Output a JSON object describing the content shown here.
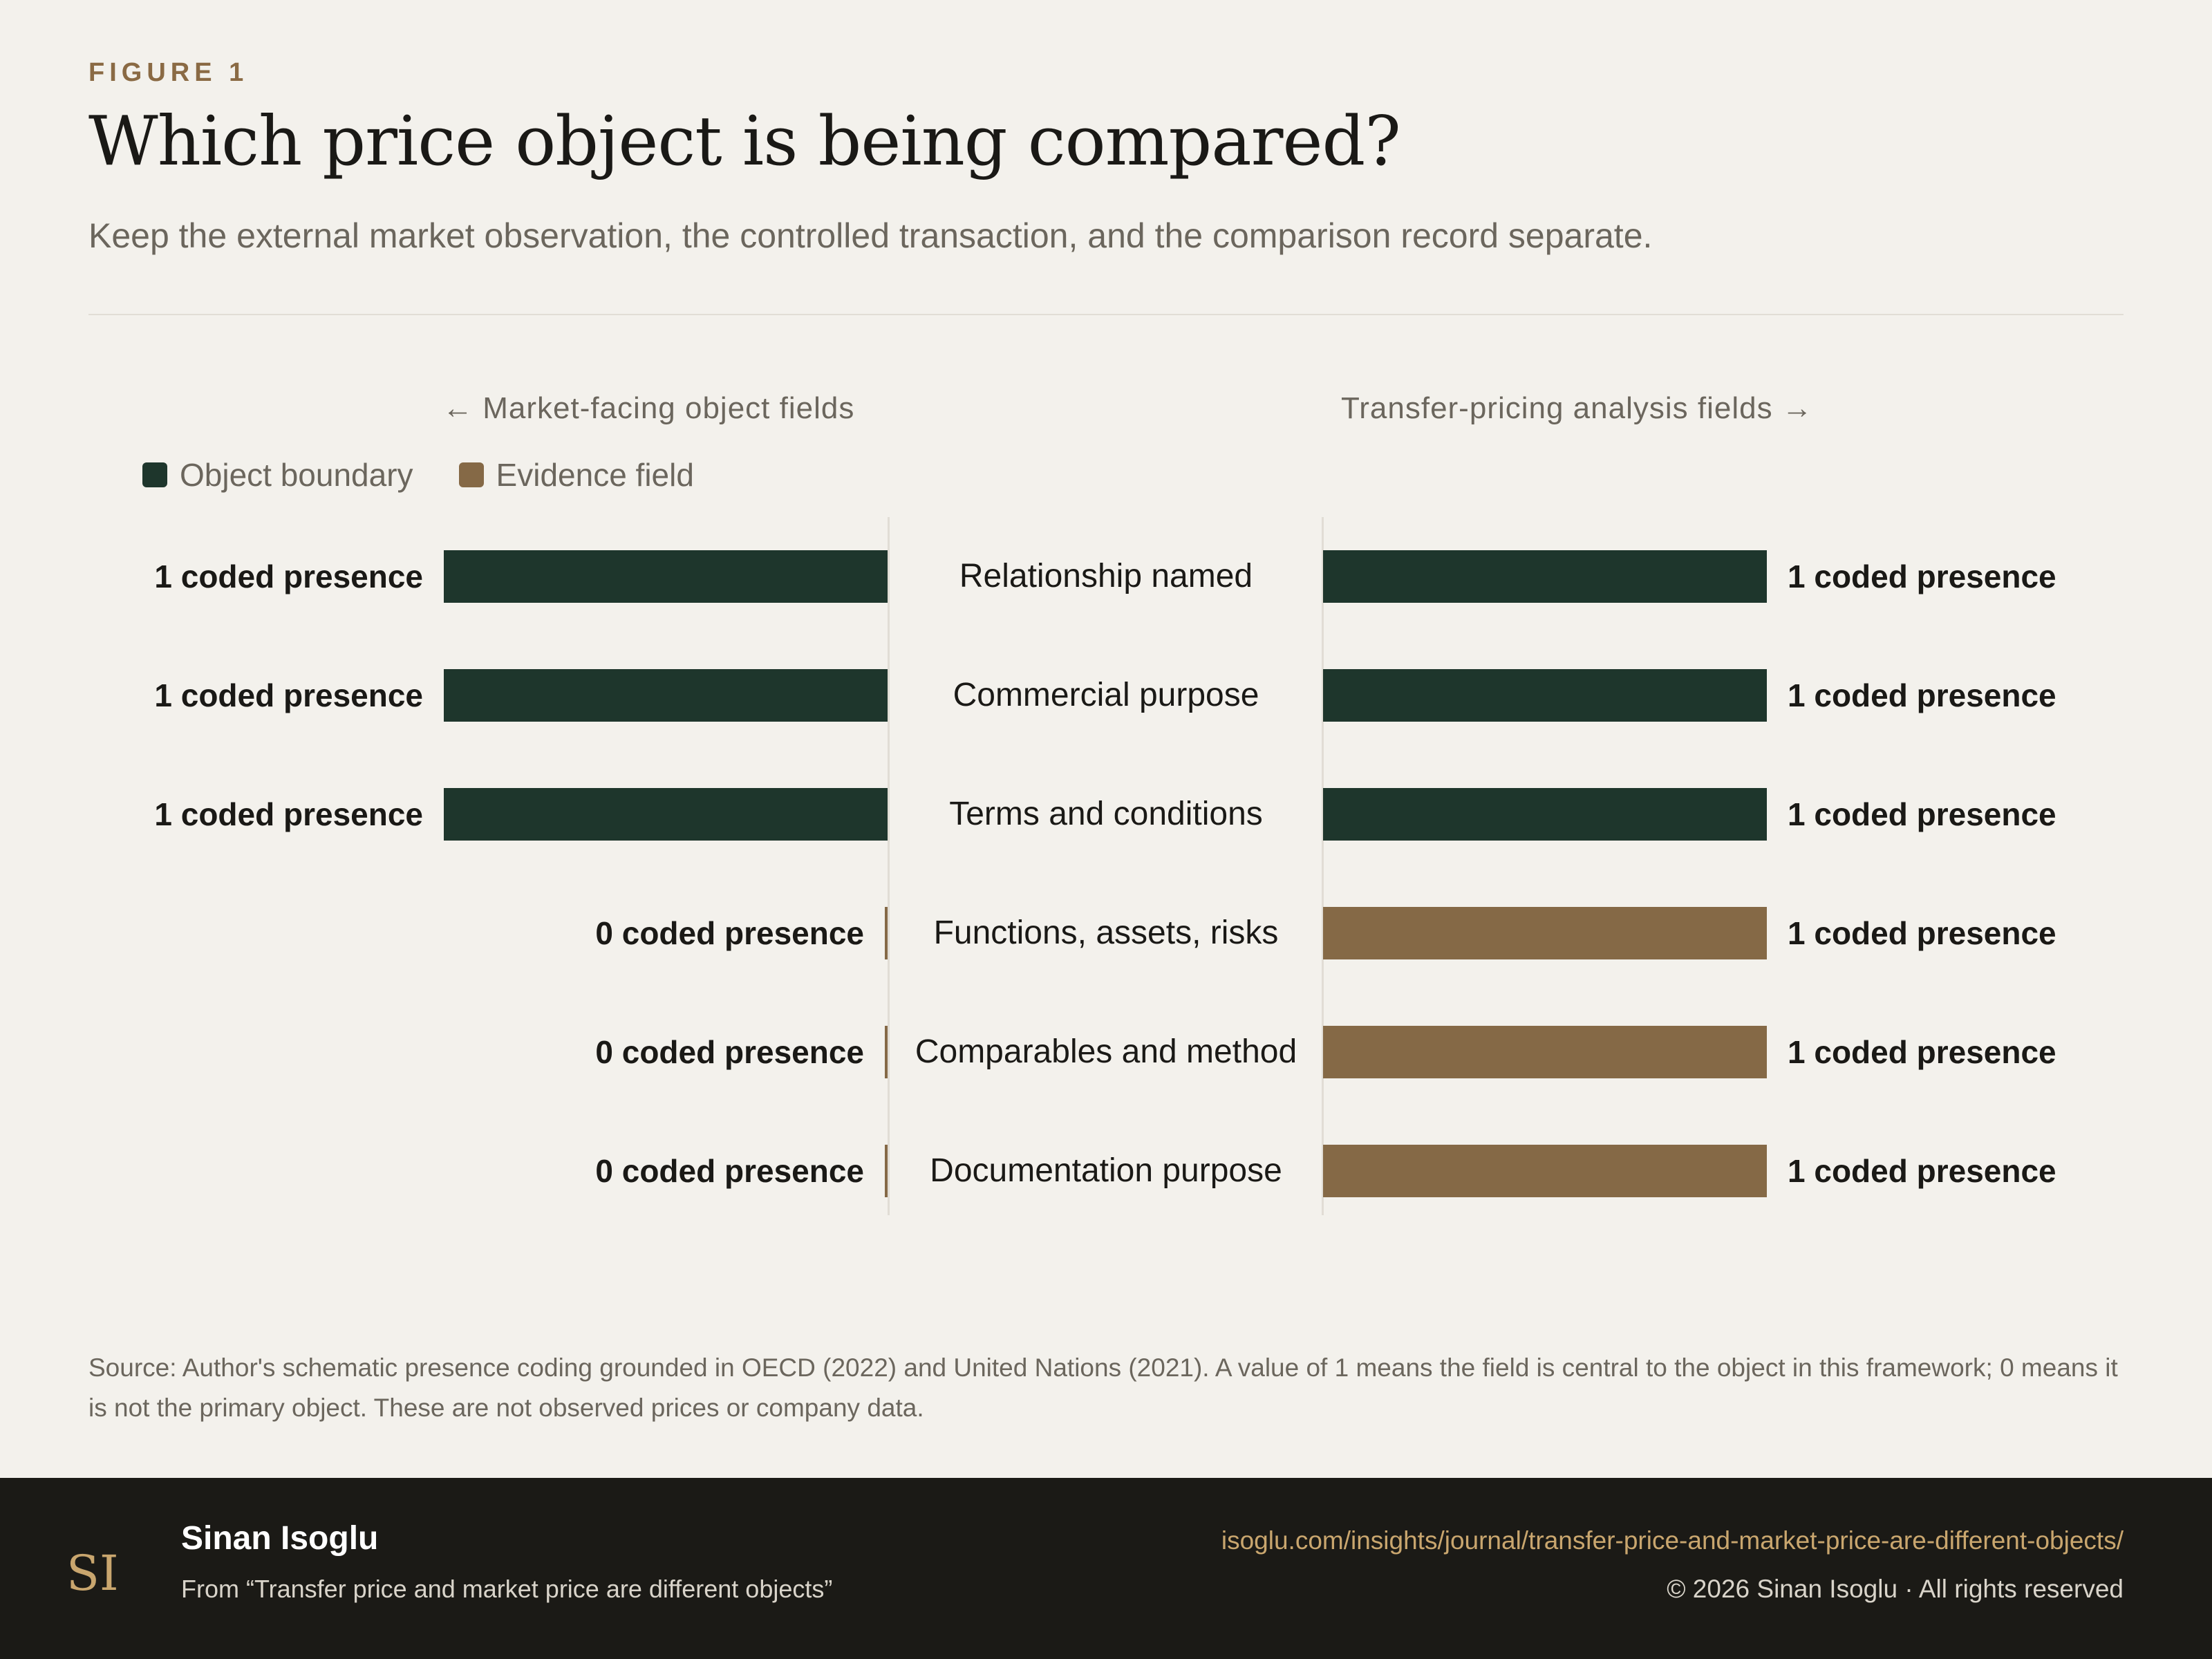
{
  "header": {
    "eyebrow": "FIGURE 1",
    "title": "Which price object is being compared?",
    "subtitle": "Keep the external market observation, the controlled transaction, and the comparison record separate."
  },
  "chart_data": {
    "type": "bar",
    "left_heading": "← Market-facing object fields",
    "right_heading": "Transfer-pricing analysis fields →",
    "legend": [
      {
        "label": "Object boundary",
        "color": "#1e362c"
      },
      {
        "label": "Evidence field",
        "color": "#856946"
      }
    ],
    "value_suffix": "coded presence",
    "categories": [
      "Relationship named",
      "Commercial purpose",
      "Terms and conditions",
      "Functions, assets, risks",
      "Comparables and method",
      "Documentation purpose"
    ],
    "category_kind": [
      "Object boundary",
      "Object boundary",
      "Object boundary",
      "Evidence field",
      "Evidence field",
      "Evidence field"
    ],
    "series": [
      {
        "side": "left",
        "values": [
          1,
          1,
          1,
          0,
          0,
          0
        ]
      },
      {
        "side": "right",
        "values": [
          1,
          1,
          1,
          1,
          1,
          1
        ]
      }
    ],
    "xlim": [
      0,
      1
    ]
  },
  "source": "Source: Author's schematic presence coding grounded in OECD (2022) and United Nations (2021). A value of 1 means the field is central to the object in this framework; 0 means it is not the primary object. These are not observed prices or company data.",
  "footer": {
    "name": "Sinan Isoglu",
    "from": "From “Transfer price and market price are different objects”",
    "url": "isoglu.com/insights/journal/transfer-price-and-market-price-are-different-objects/",
    "copyright": "© 2026 Sinan Isoglu · All rights reserved",
    "logo_text": "SI"
  }
}
